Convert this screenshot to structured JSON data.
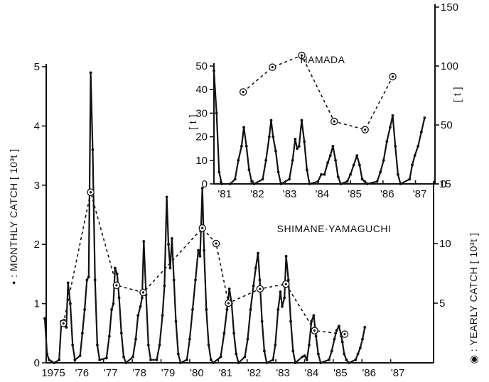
{
  "chart_data": [
    {
      "type": "line",
      "title": "",
      "ylabel": "• : MONTHLY CATCH [ 10³t ]",
      "y2label": "◉ : YEARLY CATCH [ 10³t ]",
      "annotation": "SHIMANE·YAMAGUCHI",
      "ylim": [
        0,
        5
      ],
      "y2lim": [
        0,
        15
      ],
      "yticks": [
        0,
        1,
        2,
        3,
        4,
        5
      ],
      "y2ticks": [
        5,
        10,
        15
      ],
      "xlim": [
        1975,
        1988
      ],
      "xticks": [
        {
          "value": 1975,
          "label": "1975"
        },
        {
          "value": 1976,
          "label": "'76"
        },
        {
          "value": 1977,
          "label": "'77"
        },
        {
          "value": 1978,
          "label": "'78"
        },
        {
          "value": 1979,
          "label": "'79"
        },
        {
          "value": 1980,
          "label": "'80"
        },
        {
          "value": 1981,
          "label": "'81"
        },
        {
          "value": 1982,
          "label": "'82"
        },
        {
          "value": 1983,
          "label": "'83"
        },
        {
          "value": 1984,
          "label": "'84"
        },
        {
          "value": 1985,
          "label": "'85"
        },
        {
          "value": 1986,
          "label": "'86"
        },
        {
          "value": 1987,
          "label": "'87"
        }
      ],
      "series": [
        {
          "axis": "left",
          "style": "solid",
          "points": [
            [
              1974.95,
              0.75
            ],
            [
              1975.03,
              0.15
            ],
            [
              1975.1,
              0.05
            ],
            [
              1975.18,
              0.02
            ],
            [
              1975.28,
              0.0
            ],
            [
              1975.45,
              0.05
            ],
            [
              1975.53,
              0.7
            ],
            [
              1975.62,
              0.72
            ],
            [
              1975.7,
              0.6
            ],
            [
              1975.76,
              1.35
            ],
            [
              1975.84,
              1.0
            ],
            [
              1975.92,
              0.3
            ],
            [
              1976.0,
              0.05
            ],
            [
              1976.18,
              0.12
            ],
            [
              1976.26,
              0.5
            ],
            [
              1976.34,
              0.9
            ],
            [
              1976.42,
              1.4
            ],
            [
              1976.48,
              1.45
            ],
            [
              1976.55,
              4.9
            ],
            [
              1976.62,
              3.6
            ],
            [
              1976.7,
              1.4
            ],
            [
              1976.78,
              0.3
            ],
            [
              1976.86,
              0.05
            ],
            [
              1977.1,
              0.08
            ],
            [
              1977.2,
              0.45
            ],
            [
              1977.28,
              0.9
            ],
            [
              1977.34,
              1.0
            ],
            [
              1977.4,
              1.6
            ],
            [
              1977.47,
              1.5
            ],
            [
              1977.54,
              1.1
            ],
            [
              1977.62,
              0.5
            ],
            [
              1977.7,
              0.1
            ],
            [
              1977.78,
              0.0
            ],
            [
              1978.02,
              0.1
            ],
            [
              1978.12,
              0.4
            ],
            [
              1978.2,
              0.8
            ],
            [
              1978.28,
              0.95
            ],
            [
              1978.34,
              1.1
            ],
            [
              1978.4,
              2.05
            ],
            [
              1978.48,
              1.15
            ],
            [
              1978.56,
              0.3
            ],
            [
              1978.64,
              0.05
            ],
            [
              1978.85,
              0.05
            ],
            [
              1978.95,
              0.3
            ],
            [
              1979.05,
              0.8
            ],
            [
              1979.12,
              1.3
            ],
            [
              1979.2,
              2.8
            ],
            [
              1979.26,
              2.0
            ],
            [
              1979.32,
              1.6
            ],
            [
              1979.38,
              2.1
            ],
            [
              1979.45,
              1.4
            ],
            [
              1979.52,
              0.7
            ],
            [
              1979.6,
              0.15
            ],
            [
              1979.68,
              0.0
            ],
            [
              1979.9,
              0.05
            ],
            [
              1980.0,
              0.4
            ],
            [
              1980.1,
              0.9
            ],
            [
              1980.2,
              1.4
            ],
            [
              1980.3,
              1.9
            ],
            [
              1980.36,
              1.8
            ],
            [
              1980.44,
              2.95
            ],
            [
              1980.5,
              1.9
            ],
            [
              1980.58,
              0.9
            ],
            [
              1980.66,
              0.3
            ],
            [
              1980.74,
              0.05
            ],
            [
              1980.82,
              0.0
            ],
            [
              1981.08,
              0.1
            ],
            [
              1981.2,
              0.5
            ],
            [
              1981.3,
              0.9
            ],
            [
              1981.38,
              1.25
            ],
            [
              1981.46,
              1.0
            ],
            [
              1981.54,
              0.5
            ],
            [
              1981.62,
              0.15
            ],
            [
              1981.7,
              0.0
            ],
            [
              1981.92,
              0.1
            ],
            [
              1982.02,
              0.4
            ],
            [
              1982.12,
              0.9
            ],
            [
              1982.22,
              1.3
            ],
            [
              1982.3,
              1.6
            ],
            [
              1982.38,
              1.85
            ],
            [
              1982.44,
              1.4
            ],
            [
              1982.52,
              0.7
            ],
            [
              1982.6,
              0.2
            ],
            [
              1982.68,
              0.0
            ],
            [
              1982.9,
              0.05
            ],
            [
              1982.98,
              0.3
            ],
            [
              1983.08,
              0.9
            ],
            [
              1983.16,
              1.2
            ],
            [
              1983.22,
              0.95
            ],
            [
              1983.3,
              1.1
            ],
            [
              1983.36,
              1.8
            ],
            [
              1983.44,
              1.4
            ],
            [
              1983.52,
              0.7
            ],
            [
              1983.6,
              0.2
            ],
            [
              1983.68,
              0.0
            ],
            [
              1983.92,
              0.1
            ],
            [
              1984.0,
              0.12
            ],
            [
              1984.08,
              0.05
            ],
            [
              1984.16,
              0.3
            ],
            [
              1984.24,
              0.7
            ],
            [
              1984.32,
              0.8
            ],
            [
              1984.4,
              0.45
            ],
            [
              1984.48,
              0.15
            ],
            [
              1984.56,
              0.0
            ],
            [
              1984.85,
              0.05
            ],
            [
              1984.95,
              0.2
            ],
            [
              1985.04,
              0.4
            ],
            [
              1985.12,
              0.55
            ],
            [
              1985.2,
              0.62
            ],
            [
              1985.28,
              0.45
            ],
            [
              1985.32,
              0.35
            ],
            [
              1985.38,
              0.15
            ],
            [
              1985.46,
              0.05
            ],
            [
              1985.54,
              0.0
            ],
            [
              1985.78,
              0.05
            ],
            [
              1985.86,
              0.15
            ],
            [
              1985.94,
              0.25
            ],
            [
              1986.02,
              0.4
            ],
            [
              1986.1,
              0.6
            ]
          ]
        },
        {
          "axis": "right",
          "style": "dashed",
          "points": [
            [
              1975.6,
              3.3
            ],
            [
              1976.55,
              14.3
            ],
            [
              1977.45,
              6.5
            ],
            [
              1978.38,
              5.9
            ],
            [
              1980.44,
              11.3
            ],
            [
              1980.92,
              10.0
            ],
            [
              1981.35,
              5.0
            ],
            [
              1982.45,
              6.2
            ],
            [
              1983.35,
              6.6
            ],
            [
              1984.35,
              2.7
            ],
            [
              1985.4,
              2.4
            ]
          ]
        }
      ]
    },
    {
      "type": "line",
      "title": "HAMADA",
      "ylabel": "[ t ]",
      "y2label": "[ t ]",
      "ylim": [
        0,
        50
      ],
      "y2lim": [
        0,
        150
      ],
      "yticks": [
        0,
        10,
        20,
        30,
        40,
        50
      ],
      "y2ticks": [
        0,
        50,
        100,
        150
      ],
      "xlim": [
        1980.8,
        1987.6
      ],
      "xticks": [
        {
          "value": 1981,
          "label": "'81"
        },
        {
          "value": 1982,
          "label": "'82"
        },
        {
          "value": 1983,
          "label": "'83"
        },
        {
          "value": 1984,
          "label": "'84"
        },
        {
          "value": 1985,
          "label": "'85"
        },
        {
          "value": 1986,
          "label": "'86"
        },
        {
          "value": 1987,
          "label": "'87"
        }
      ],
      "series": [
        {
          "axis": "left",
          "style": "solid",
          "points": [
            [
              1980.8,
              48
            ],
            [
              1980.88,
              30
            ],
            [
              1980.96,
              5
            ],
            [
              1981.04,
              0
            ],
            [
              1981.3,
              0
            ],
            [
              1981.45,
              2
            ],
            [
              1981.55,
              10
            ],
            [
              1981.65,
              16
            ],
            [
              1981.72,
              24
            ],
            [
              1981.8,
              16
            ],
            [
              1981.88,
              6
            ],
            [
              1981.96,
              1
            ],
            [
              1982.04,
              0
            ],
            [
              1982.3,
              2
            ],
            [
              1982.4,
              10
            ],
            [
              1982.5,
              20
            ],
            [
              1982.56,
              27
            ],
            [
              1982.62,
              20
            ],
            [
              1982.7,
              14
            ],
            [
              1982.78,
              5
            ],
            [
              1982.86,
              0
            ],
            [
              1983.12,
              2
            ],
            [
              1983.22,
              10
            ],
            [
              1983.3,
              19
            ],
            [
              1983.36,
              15
            ],
            [
              1983.42,
              16
            ],
            [
              1983.5,
              27
            ],
            [
              1983.58,
              18
            ],
            [
              1983.66,
              6
            ],
            [
              1983.74,
              0
            ],
            [
              1984.0,
              1
            ],
            [
              1984.1,
              4
            ],
            [
              1984.2,
              4
            ],
            [
              1984.3,
              9
            ],
            [
              1984.38,
              12
            ],
            [
              1984.46,
              16
            ],
            [
              1984.54,
              10
            ],
            [
              1984.62,
              3
            ],
            [
              1984.7,
              0
            ],
            [
              1984.9,
              1
            ],
            [
              1985.0,
              4
            ],
            [
              1985.1,
              8
            ],
            [
              1985.2,
              12
            ],
            [
              1985.28,
              8
            ],
            [
              1985.36,
              2
            ],
            [
              1985.44,
              1
            ],
            [
              1985.52,
              0
            ],
            [
              1985.82,
              1
            ],
            [
              1985.92,
              5
            ],
            [
              1986.02,
              10
            ],
            [
              1986.12,
              18
            ],
            [
              1986.22,
              24
            ],
            [
              1986.3,
              29
            ],
            [
              1986.38,
              16
            ],
            [
              1986.46,
              4
            ],
            [
              1986.54,
              0
            ],
            [
              1986.82,
              2
            ],
            [
              1986.9,
              8
            ],
            [
              1986.98,
              12
            ],
            [
              1987.08,
              16
            ],
            [
              1987.18,
              22
            ],
            [
              1987.28,
              28
            ]
          ]
        },
        {
          "axis": "right",
          "style": "dashed",
          "points": [
            [
              1981.7,
              78
            ],
            [
              1982.6,
              99
            ],
            [
              1983.5,
              109
            ],
            [
              1984.5,
              53
            ],
            [
              1985.45,
              46
            ],
            [
              1986.3,
              91
            ]
          ]
        }
      ]
    }
  ]
}
